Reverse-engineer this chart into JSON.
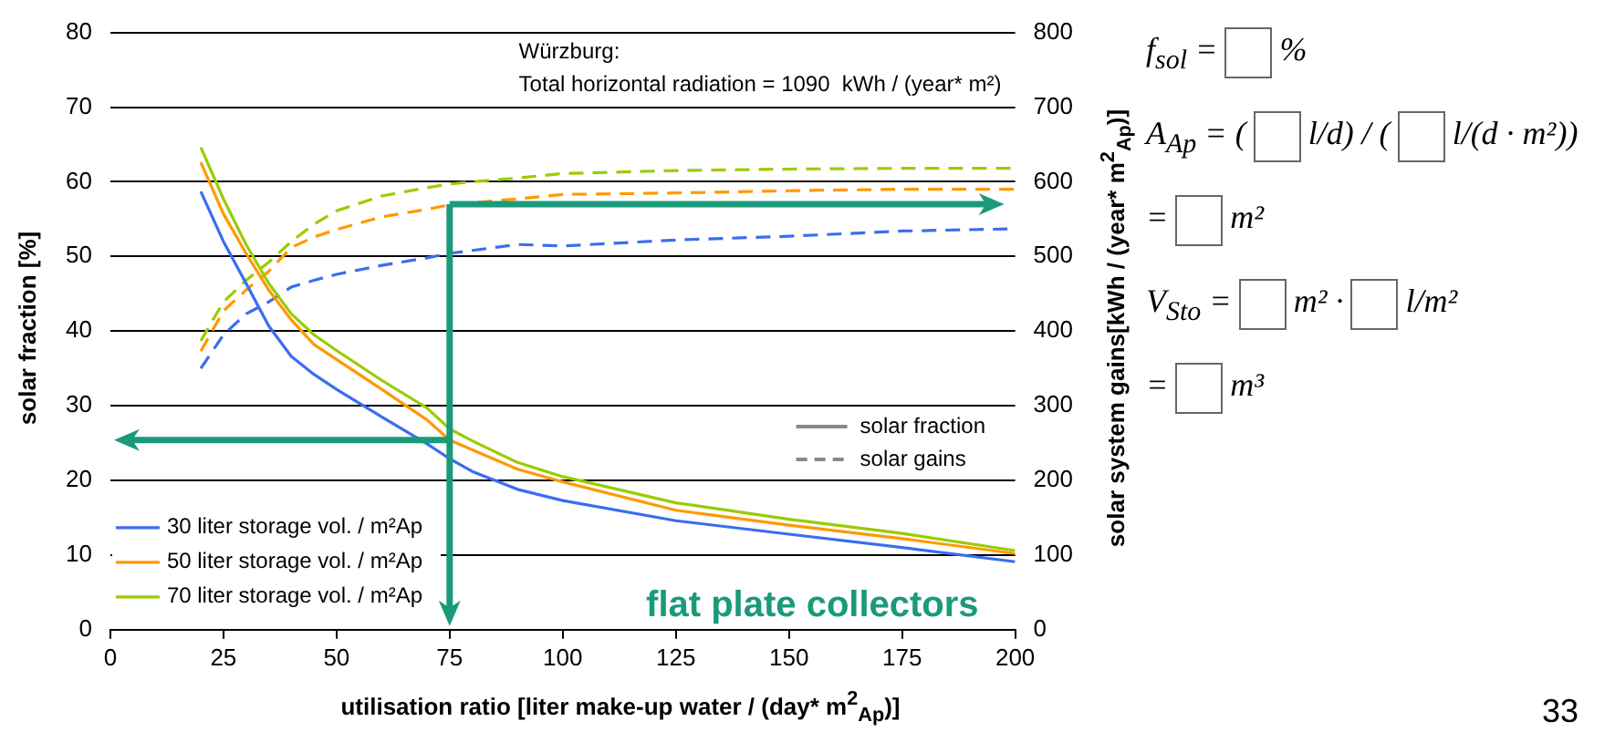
{
  "chart_data": {
    "type": "line",
    "xlabel": "utilisation ratio [liter make-up water / (day*  m$^{2}$$_{Ap}$)]",
    "ylabel": "solar fraction [%]",
    "y2label": "solar system gains[kWh / (year* m$^{2}$$_{Ap}$)]",
    "x": [
      20,
      25,
      30,
      35,
      40,
      45,
      50,
      60,
      70,
      75,
      80,
      90,
      100,
      125,
      150,
      175,
      200
    ],
    "series": [
      {
        "name": "30 liter storage vol. / m²Ap",
        "color": "#3a6df0",
        "values": [
          58.7,
          52,
          46.4,
          40.7,
          36.6,
          34.2,
          32.2,
          28.5,
          24.9,
          22.9,
          21.2,
          18.8,
          17.3,
          14.6,
          12.8,
          11,
          9.1
        ]
      },
      {
        "name": "50 liter storage vol. / m²Ap",
        "color": "#ff9900",
        "values": [
          62.6,
          55.7,
          50.4,
          45.5,
          41.5,
          38.2,
          36.2,
          32.2,
          28.1,
          25.4,
          24.1,
          21.5,
          19.8,
          16,
          14,
          12.2,
          10.2
        ]
      },
      {
        "name": "70 liter storage vol. / m²Ap",
        "color": "#99cc00",
        "values": [
          64.6,
          57.7,
          51.6,
          46.4,
          42.3,
          39.5,
          37.4,
          33.4,
          29.7,
          26.9,
          25.3,
          22.4,
          20.5,
          17,
          14.8,
          12.9,
          10.6
        ]
      },
      {
        "color": "#3a6df0",
        "axis": "y2",
        "line_style": "dashed",
        "values": [
          350,
          395,
          423,
          439,
          459,
          468,
          476,
          488,
          498,
          504,
          508,
          516,
          514,
          522,
          527,
          534,
          537
        ]
      },
      {
        "color": "#ff9900",
        "axis": "y2",
        "line_style": "dashed",
        "values": [
          373,
          427,
          455,
          480,
          512,
          526,
          536,
          553,
          563,
          569,
          572,
          577,
          583,
          585,
          588,
          590,
          590
        ]
      },
      {
        "color": "#99cc00",
        "axis": "y2",
        "line_style": "dashed",
        "values": [
          387,
          439,
          468,
          492,
          520,
          543,
          561,
          581,
          592,
          597,
          600,
          605,
          611,
          615,
          617,
          618,
          618
        ]
      }
    ],
    "xlim": [
      0,
      200
    ],
    "xticks": [
      0,
      25,
      50,
      75,
      100,
      125,
      150,
      175,
      200
    ],
    "ylim": [
      0,
      80
    ],
    "yticks": [
      0,
      10,
      20,
      30,
      40,
      50,
      60,
      70,
      80
    ],
    "y2lim": [
      0,
      800
    ],
    "y2ticks": [
      0,
      100,
      200,
      300,
      400,
      500,
      600,
      700,
      800
    ],
    "ref_lines": [
      {
        "axis": "x",
        "value": 75,
        "color": "#1a9a7a"
      },
      {
        "axis": "y",
        "value": 25.4,
        "color": "#1a9a7a"
      },
      {
        "axis": "y2",
        "value": 570,
        "color": "#1a9a7a"
      }
    ],
    "grid": "y",
    "legend": "bottom left",
    "marker": "none",
    "line_style": "solid",
    "annotations": [
      "Würzburg:",
      "Total horizontal radiation = 1090  kWh / (year* m²)",
      "solar fraction",
      "solar gains",
      "flat plate collectors",
      "f$_{sol}$ =",
      "%",
      "A$_{Ap}$ = (",
      "l/d) / (",
      "l/(d · m²))",
      "=",
      "m²",
      "V$_{Sto}$ =",
      "m² ·",
      "l/m²",
      "=",
      "m³",
      "33"
    ]
  }
}
